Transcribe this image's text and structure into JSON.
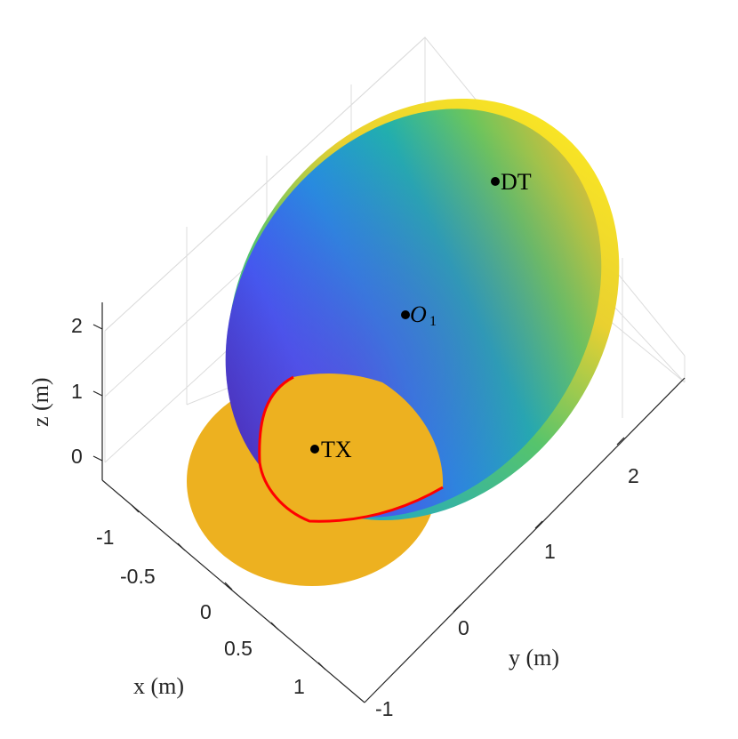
{
  "chart_data": {
    "type": "surface3d",
    "xlabel": "x (m)",
    "ylabel": "y (m)",
    "zlabel": "z (m)",
    "xlim": [
      -1.25,
      1.25
    ],
    "ylim": [
      -1,
      3
    ],
    "zlim": [
      -0.5,
      2.5
    ],
    "x_ticks": [
      -1,
      -0.5,
      0,
      0.5,
      1
    ],
    "x_tick_labels": [
      "-1",
      "-0.5",
      "0",
      "0.5",
      "1"
    ],
    "y_ticks": [
      -1,
      0,
      1,
      2
    ],
    "y_tick_labels": [
      "-1",
      "0",
      "1",
      "2"
    ],
    "z_ticks": [
      0,
      1,
      2
    ],
    "z_tick_labels": [
      "0",
      "1",
      "2"
    ],
    "grid": true,
    "colormap": "parula",
    "ground_disk": {
      "center": [
        0,
        0,
        0
      ],
      "radius": 1.15,
      "color": "#EDB120"
    },
    "intersection_curve_color": "#FF0000",
    "points": [
      {
        "label": "TX",
        "x": -0.3,
        "y": -0.3,
        "z": 0
      },
      {
        "label": "O",
        "subscript": "1",
        "x": 0.5,
        "y": 0.6,
        "z": 1.1
      },
      {
        "label": "DT",
        "x": 1.3,
        "y": 1.55,
        "z": 2.1
      }
    ]
  }
}
